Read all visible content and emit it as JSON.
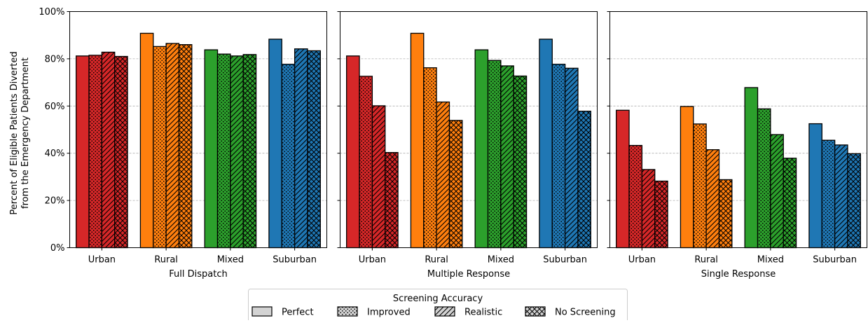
{
  "chart_data": {
    "type": "bar",
    "ylabel_lines": [
      "Percent of Eligible Patients Diverted",
      "from the Emergency Department"
    ],
    "ylim": [
      0,
      100
    ],
    "yticks": [
      0,
      20,
      40,
      60,
      80,
      100
    ],
    "ytick_labels": [
      "0%",
      "20%",
      "40%",
      "60%",
      "80%",
      "100%"
    ],
    "grid": "horizontal dashed",
    "legend": {
      "title": "Screening Accuracy",
      "placement": "bottom-center",
      "entries": [
        "Perfect",
        "Improved",
        "Realistic",
        "No Screening"
      ]
    },
    "categories": [
      "Urban",
      "Rural",
      "Mixed",
      "Suburban"
    ],
    "category_colors": [
      "#d62728",
      "#ff7f0e",
      "#2ca02c",
      "#1f77b4"
    ],
    "series_patterns": [
      "solid",
      "dots",
      "diagonal",
      "crosshatch"
    ],
    "panels": [
      {
        "xlabel": "Full Dispatch",
        "values": [
          [
            81.2,
            81.5,
            82.8,
            81.0
          ],
          [
            90.8,
            85.2,
            86.5,
            86.0
          ],
          [
            83.8,
            82.0,
            81.2,
            81.8
          ],
          [
            88.3,
            77.7,
            84.2,
            83.4
          ]
        ]
      },
      {
        "xlabel": "Multiple Response",
        "values": [
          [
            81.2,
            72.6,
            60.1,
            40.3
          ],
          [
            90.8,
            76.2,
            61.7,
            53.9
          ],
          [
            83.8,
            79.3,
            77.0,
            72.7
          ],
          [
            88.3,
            77.7,
            76.0,
            57.8
          ]
        ]
      },
      {
        "xlabel": "Single Response",
        "values": [
          [
            58.2,
            43.3,
            33.1,
            28.2
          ],
          [
            59.8,
            52.4,
            41.5,
            28.8
          ],
          [
            67.8,
            58.8,
            47.9,
            37.9
          ],
          [
            52.5,
            45.5,
            43.5,
            39.8
          ]
        ]
      }
    ]
  }
}
